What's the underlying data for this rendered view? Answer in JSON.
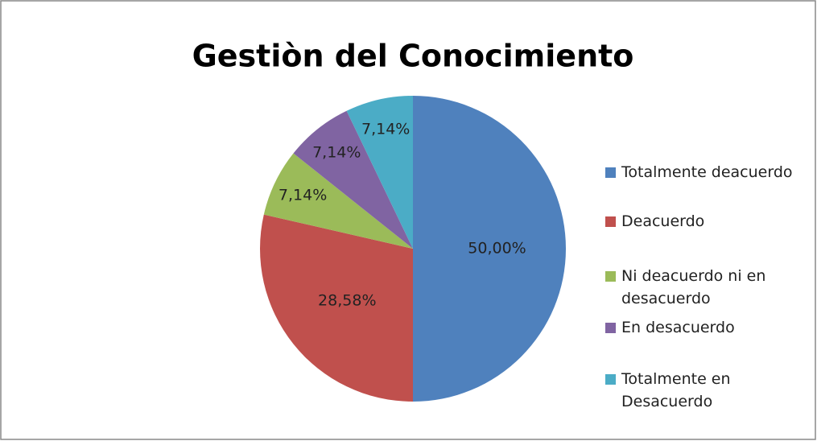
{
  "chart_data": {
    "type": "pie",
    "title": "Gestiòn del Conocimiento",
    "categories": [
      "Totalmente deacuerdo",
      "Deacuerdo",
      "Ni deacuerdo ni en desacuerdo",
      "En desacuerdo",
      "Totalmente en Desacuerdo"
    ],
    "values": [
      50,
      28.58,
      7.14,
      7.14,
      7.14
    ],
    "value_labels": [
      "50,00%",
      "28,58%",
      "7,14%",
      "7,14%",
      "7,14%"
    ],
    "colors": [
      "#4f81bd",
      "#c0504d",
      "#9bbb59",
      "#8064a2",
      "#4bacc6"
    ],
    "legend": "right"
  }
}
